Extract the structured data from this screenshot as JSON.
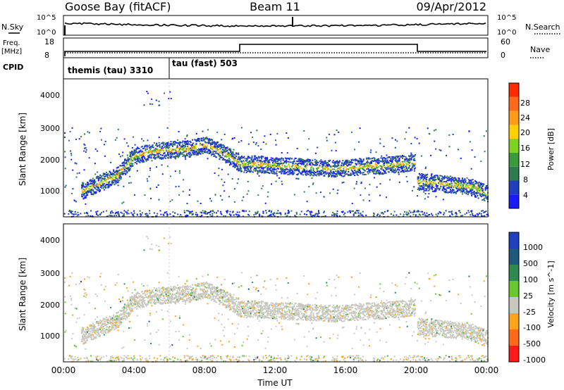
{
  "header": {
    "station": "Goose Bay (fitACF)",
    "beam": "Beam 11",
    "date": "09/Apr/2012"
  },
  "noise_panel": {
    "left_label": "N.Sky",
    "right_label": "N.Search",
    "left_ticks": [
      "10^5",
      "10^0"
    ],
    "right_ticks": [
      "10^5",
      "10^0"
    ]
  },
  "freq_panel": {
    "left_label_line1": "Freq.",
    "left_label_line2": "[MHz]",
    "left_ticks": [
      "18",
      "8"
    ],
    "right_label": "Nave",
    "right_ticks": [
      "60",
      "0"
    ]
  },
  "cpid_panel": {
    "label": "CPID",
    "modes": [
      {
        "name": "themis (tau) 3310",
        "start_hour": 0,
        "end_hour": 6
      },
      {
        "name": "tau (fast) 503",
        "start_hour": 6,
        "end_hour": 24
      }
    ]
  },
  "colors": {
    "power_scale": [
      "#1a1aff",
      "#1f3fbf",
      "#2f7a4f",
      "#3a9a3a",
      "#7ed320",
      "#ffd000",
      "#ff9d1a",
      "#ff6a1a",
      "#ff2a00"
    ],
    "velocity_scale": [
      "#2040c0",
      "#1f5a7a",
      "#2f8a4f",
      "#69c830",
      "#c8c8c0",
      "#ffa31a",
      "#ff6a1a",
      "#ff1a1a"
    ]
  },
  "chart_data": [
    {
      "type": "heatmap",
      "title": "Power",
      "xlabel": "Time UT",
      "ylabel": "Slant Range [km]",
      "xlim": [
        0,
        24
      ],
      "ylim": [
        180,
        4500
      ],
      "x_ticks": [
        "00:00",
        "04:00",
        "08:00",
        "12:00",
        "16:00",
        "20:00",
        "00:00"
      ],
      "y_ticks": [
        "1000",
        "2000",
        "3000",
        "4000"
      ],
      "colorbar_label": "Power [dB]",
      "colorbar_ticks": [
        "28",
        "24",
        "20",
        "16",
        "12",
        "8",
        "4"
      ],
      "bands": [
        {
          "name": "main",
          "hours": [
            1.0,
            3.0,
            4.0,
            5.0,
            6.0,
            7.0,
            8.0,
            9.0,
            10.0,
            11.0,
            12.0,
            13.0,
            14.0,
            15.0,
            16.0,
            17.0,
            18.0,
            19.0,
            19.9
          ],
          "ranges": [
            1000,
            1500,
            2100,
            2250,
            2300,
            2320,
            2450,
            2200,
            1850,
            1850,
            1800,
            1780,
            1750,
            1700,
            1730,
            1780,
            1800,
            1850,
            1900
          ]
        },
        {
          "name": "late",
          "hours": [
            20.0,
            21.0,
            22.0,
            23.0,
            24.0
          ],
          "ranges": [
            1300,
            1250,
            1200,
            1150,
            900
          ]
        }
      ]
    },
    {
      "type": "heatmap",
      "title": "Velocity",
      "xlabel": "Time UT",
      "ylabel": "Slant Range [km]",
      "xlim": [
        0,
        24
      ],
      "ylim": [
        180,
        4500
      ],
      "x_ticks": [
        "00:00",
        "04:00",
        "08:00",
        "12:00",
        "16:00",
        "20:00",
        "00:00"
      ],
      "y_ticks": [
        "1000",
        "2000",
        "3000",
        "4000"
      ],
      "colorbar_label": "Velocity [m s^-1]",
      "colorbar_ticks": [
        "1000",
        "500",
        "100",
        "25",
        "-25",
        "-100",
        "-500",
        "-1000"
      ]
    }
  ]
}
